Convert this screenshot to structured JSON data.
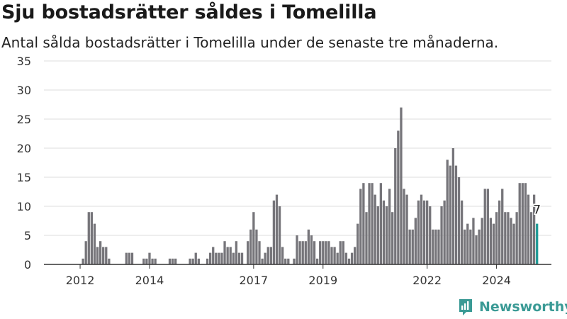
{
  "title": "Sju bostadsrätter såldes i Tomelilla",
  "subtitle": "Antal sålda bostadsrätter i Tomelilla under de senaste tre månaderna.",
  "brand": {
    "name": "Newsworthy",
    "icon": "newsworthy-logo-icon",
    "color": "#3a9a95"
  },
  "colors": {
    "bar": "#76757a",
    "highlight": "#1f9a96",
    "grid": "#dddddd",
    "axis": "#333333"
  },
  "chart_data": {
    "type": "bar",
    "title": "Sju bostadsrätter såldes i Tomelilla",
    "subtitle": "Antal sålda bostadsrätter i Tomelilla under de senaste tre månaderna.",
    "xlabel": "",
    "ylabel": "",
    "ylim": [
      0,
      35
    ],
    "yticks": [
      0,
      5,
      10,
      15,
      20,
      25,
      30,
      35
    ],
    "grid": true,
    "xticks": [
      {
        "label": "2012",
        "index": 5
      },
      {
        "label": "2014",
        "index": 29
      },
      {
        "label": "2017",
        "index": 65
      },
      {
        "label": "2019",
        "index": 89
      },
      {
        "label": "2022",
        "index": 125
      },
      {
        "label": "2024",
        "index": 149
      }
    ],
    "highlight_last": true,
    "last_label": "7",
    "values": [
      0,
      0,
      0,
      0,
      0,
      0,
      1,
      4,
      9,
      9,
      7,
      3,
      4,
      3,
      3,
      1,
      0,
      0,
      0,
      0,
      0,
      2,
      2,
      2,
      0,
      0,
      0,
      1,
      1,
      2,
      1,
      1,
      0,
      0,
      0,
      0,
      1,
      1,
      1,
      0,
      0,
      0,
      0,
      1,
      1,
      2,
      1,
      0,
      0,
      1,
      2,
      3,
      2,
      2,
      2,
      4,
      3,
      3,
      2,
      4,
      2,
      2,
      0,
      4,
      6,
      9,
      6,
      4,
      1,
      2,
      3,
      3,
      11,
      12,
      10,
      3,
      1,
      1,
      0,
      1,
      5,
      4,
      4,
      4,
      6,
      5,
      4,
      1,
      4,
      4,
      4,
      4,
      3,
      3,
      2,
      4,
      4,
      2,
      1,
      2,
      3,
      7,
      13,
      14,
      9,
      14,
      14,
      12,
      10,
      14,
      11,
      10,
      13,
      9,
      20,
      23,
      27,
      13,
      12,
      6,
      6,
      8,
      11,
      12,
      11,
      11,
      10,
      6,
      6,
      6,
      10,
      11,
      18,
      17,
      20,
      17,
      15,
      11,
      6,
      7,
      6,
      8,
      5,
      6,
      8,
      13,
      13,
      8,
      7,
      9,
      11,
      13,
      9,
      9,
      8,
      7,
      9,
      14,
      14,
      14,
      12,
      9,
      12,
      7
    ]
  }
}
